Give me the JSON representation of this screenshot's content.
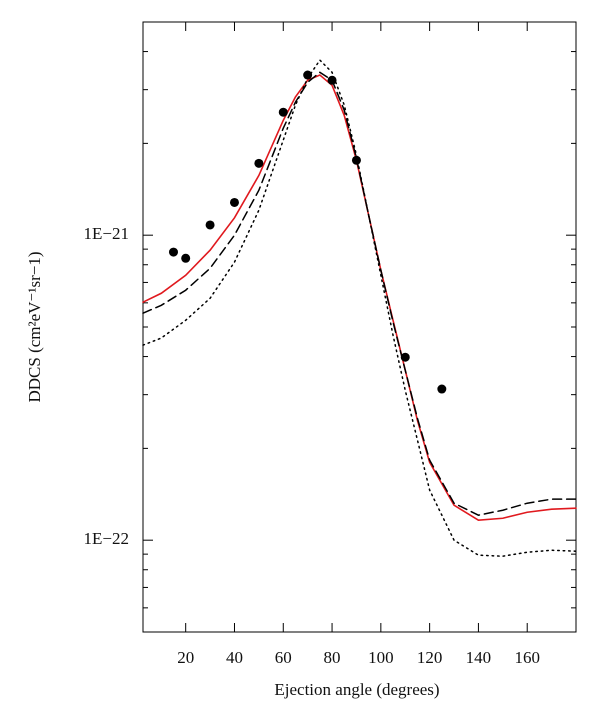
{
  "chart_data": {
    "type": "line",
    "x_label": "Ejection angle (degrees)",
    "y_label": "DDCS (cm²eV⁻¹sr−1)",
    "xlim": [
      2.5,
      180
    ],
    "xticks": [
      20,
      40,
      60,
      80,
      100,
      120,
      140,
      160
    ],
    "ylim": [
      5e-23,
      5e-21
    ],
    "yscale": "log",
    "yticks": [
      {
        "value": 1e-22,
        "label": "1E−22"
      },
      {
        "value": 1e-21,
        "label": "1E−21"
      }
    ],
    "yminorticks": [
      6e-23,
      7e-23,
      8e-23,
      9e-23,
      2e-22,
      3e-22,
      4e-22,
      5e-22,
      6e-22,
      7e-22,
      8e-22,
      9e-22,
      2e-21,
      3e-21,
      4e-21
    ],
    "series": [
      {
        "style": "solid",
        "color": "#e0191e",
        "x": [
          2.5,
          10,
          20,
          30,
          40,
          50,
          60,
          65,
          70,
          75,
          80,
          85,
          90,
          95,
          100,
          105,
          110,
          115,
          120,
          130,
          140,
          150,
          160,
          170,
          180
        ],
        "values": [
          6.03e-22,
          6.45e-22,
          7.39e-22,
          8.93e-22,
          1.14e-21,
          1.57e-21,
          2.38e-21,
          2.84e-21,
          3.22e-21,
          3.35e-21,
          3.1e-21,
          2.47e-21,
          1.76e-21,
          1.163e-21,
          7.68e-22,
          5.26e-22,
          3.61e-22,
          2.47e-22,
          1.8e-22,
          1.302e-22,
          1.163e-22,
          1.18e-22,
          1.235e-22,
          1.264e-22,
          1.273e-22
        ]
      },
      {
        "style": "dashed",
        "color": "#000000",
        "x": [
          2.5,
          10,
          20,
          30,
          40,
          50,
          60,
          65,
          70,
          75,
          80,
          85,
          90,
          95,
          100,
          105,
          110,
          115,
          120,
          130,
          140,
          150,
          160,
          170,
          180
        ],
        "values": [
          5.55e-22,
          5.89e-22,
          6.6e-22,
          7.79e-22,
          1e-21,
          1.404e-21,
          2.243e-21,
          2.73e-21,
          3.17e-21,
          3.42e-21,
          3.22e-21,
          2.57e-21,
          1.79e-21,
          1.163e-21,
          7.68e-22,
          5.19e-22,
          3.61e-22,
          2.51e-22,
          1.83e-22,
          1.322e-22,
          1.208e-22,
          1.254e-22,
          1.322e-22,
          1.363e-22,
          1.363e-22
        ]
      },
      {
        "style": "dotted",
        "color": "#000000",
        "x": [
          2.5,
          10,
          20,
          30,
          40,
          50,
          60,
          65,
          70,
          75,
          80,
          85,
          90,
          95,
          100,
          105,
          110,
          115,
          120,
          130,
          140,
          150,
          160,
          170,
          180
        ],
        "values": [
          4.36e-22,
          4.6e-22,
          5.26e-22,
          6.21e-22,
          8.16e-22,
          1.208e-21,
          2.05e-21,
          2.67e-21,
          3.27e-21,
          3.75e-21,
          3.42e-21,
          2.67e-21,
          1.83e-21,
          1.163e-21,
          7.39e-22,
          4.7e-22,
          3.1e-22,
          2.13e-22,
          1.46e-22,
          1e-22,
          8.93e-23,
          8.86e-23,
          9.13e-23,
          9.27e-23,
          9.2e-23
        ]
      },
      {
        "style": "markers",
        "color": "#000000",
        "x": [
          15,
          20,
          30,
          40,
          50,
          60,
          70,
          80,
          90,
          110,
          125
        ],
        "values": [
          8.8e-22,
          8.4e-22,
          1.08e-21,
          1.28e-21,
          1.72e-21,
          2.53e-21,
          3.35e-21,
          3.22e-21,
          1.76e-21,
          3.98e-22,
          3.13e-22
        ]
      }
    ]
  }
}
